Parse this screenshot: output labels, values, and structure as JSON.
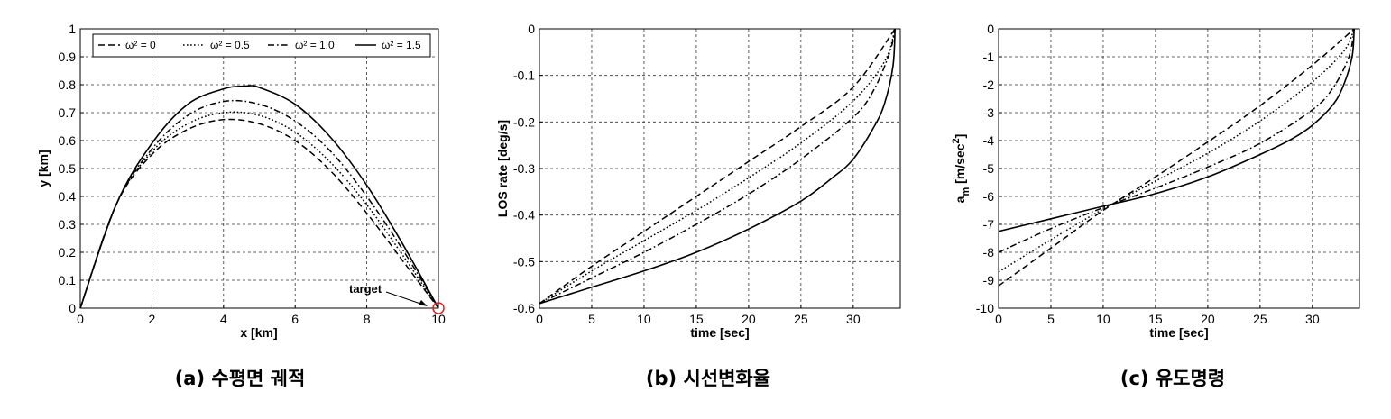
{
  "chart_data": [
    {
      "type": "line",
      "caption": "(a) 수평면 궤적",
      "xlabel": "x [km]",
      "ylabel": "y [km]",
      "xlim": [
        0,
        10
      ],
      "ylim": [
        0,
        1
      ],
      "xticks": [
        "0",
        "2",
        "4",
        "6",
        "8",
        "10"
      ],
      "yticks": [
        "0",
        "0.1",
        "0.2",
        "0.3",
        "0.4",
        "0.5",
        "0.6",
        "0.7",
        "0.8",
        "0.9",
        "1"
      ],
      "grid": true,
      "legend_position": "top",
      "annotation": "target",
      "target_point": [
        10,
        0
      ],
      "target_color": "#e02020",
      "series": [
        {
          "name": "ω² = 0",
          "style": "dashed",
          "x": [
            0,
            1,
            2,
            3,
            4,
            5,
            6,
            7,
            8,
            9,
            10
          ],
          "y": [
            0,
            0.37,
            0.55,
            0.64,
            0.675,
            0.66,
            0.6,
            0.49,
            0.34,
            0.17,
            0
          ]
        },
        {
          "name": "ω² = 0.5",
          "style": "dotted",
          "x": [
            0,
            1,
            2,
            3,
            4,
            5,
            6,
            7,
            8,
            9,
            10
          ],
          "y": [
            0,
            0.37,
            0.56,
            0.66,
            0.7,
            0.69,
            0.63,
            0.52,
            0.37,
            0.19,
            0
          ]
        },
        {
          "name": "ω² = 1.0",
          "style": "dashdot",
          "x": [
            0,
            1,
            2,
            3,
            4,
            5,
            6,
            7,
            8,
            9,
            10
          ],
          "y": [
            0,
            0.37,
            0.57,
            0.69,
            0.74,
            0.73,
            0.67,
            0.56,
            0.4,
            0.21,
            0
          ]
        },
        {
          "name": "ω² = 1.5",
          "style": "solid",
          "x": [
            0,
            1,
            2,
            3,
            4,
            4.6,
            5,
            6,
            7,
            8,
            9,
            10
          ],
          "y": [
            0,
            0.37,
            0.59,
            0.73,
            0.785,
            0.795,
            0.79,
            0.73,
            0.61,
            0.44,
            0.23,
            0
          ]
        }
      ]
    },
    {
      "type": "line",
      "caption": "(b) 시선변화율",
      "xlabel": "time [sec]",
      "ylabel": "LOS rate [deg/s]",
      "xlim": [
        0,
        34.5
      ],
      "ylim": [
        -0.6,
        0
      ],
      "xticks": [
        "0",
        "5",
        "10",
        "15",
        "20",
        "25",
        "30"
      ],
      "yticks": [
        "-0.6",
        "-0.5",
        "-0.4",
        "-0.3",
        "-0.2",
        "-0.1",
        "0"
      ],
      "grid": true,
      "series": [
        {
          "style": "dashed",
          "x": [
            0,
            5,
            10,
            15,
            20,
            25,
            30,
            34
          ],
          "y": [
            -0.59,
            -0.51,
            -0.435,
            -0.36,
            -0.285,
            -0.21,
            -0.125,
            0
          ]
        },
        {
          "style": "dotted",
          "x": [
            0,
            5,
            10,
            15,
            20,
            25,
            30,
            33,
            34
          ],
          "y": [
            -0.59,
            -0.52,
            -0.455,
            -0.39,
            -0.32,
            -0.245,
            -0.155,
            -0.07,
            0
          ]
        },
        {
          "style": "dashdot",
          "x": [
            0,
            5,
            10,
            15,
            20,
            25,
            30,
            32,
            33.5,
            34
          ],
          "y": [
            -0.59,
            -0.535,
            -0.48,
            -0.42,
            -0.355,
            -0.28,
            -0.19,
            -0.13,
            -0.05,
            0
          ]
        },
        {
          "style": "solid",
          "x": [
            0,
            5,
            10,
            15,
            20,
            25,
            28,
            30,
            32,
            33,
            33.8,
            34
          ],
          "y": [
            -0.59,
            -0.555,
            -0.52,
            -0.48,
            -0.43,
            -0.37,
            -0.32,
            -0.28,
            -0.21,
            -0.16,
            -0.08,
            0
          ]
        }
      ]
    },
    {
      "type": "line",
      "caption": "(c) 유도명령",
      "xlabel": "time [sec]",
      "ylabel": "a_m [m/sec²]",
      "ylabel_main": "a",
      "ylabel_sub": "m",
      "ylabel_rest": " [m/sec",
      "ylabel_sup": "2",
      "ylabel_end": "]",
      "xlim": [
        0,
        34.5
      ],
      "ylim": [
        -10,
        0
      ],
      "xticks": [
        "0",
        "5",
        "10",
        "15",
        "20",
        "25",
        "30"
      ],
      "yticks": [
        "-10",
        "-9",
        "-8",
        "-7",
        "-6",
        "-5",
        "-4",
        "-3",
        "-2",
        "-1",
        "0"
      ],
      "grid": true,
      "series": [
        {
          "style": "dashed",
          "x": [
            0,
            5,
            10,
            15,
            20,
            25,
            30,
            34
          ],
          "y": [
            -9.2,
            -7.85,
            -6.5,
            -5.3,
            -4.05,
            -2.75,
            -1.3,
            0
          ]
        },
        {
          "style": "dotted",
          "x": [
            0,
            5,
            10,
            15,
            20,
            25,
            30,
            33,
            34
          ],
          "y": [
            -8.7,
            -7.55,
            -6.45,
            -5.45,
            -4.45,
            -3.3,
            -1.9,
            -0.8,
            0
          ]
        },
        {
          "style": "dashdot",
          "x": [
            0,
            5,
            10,
            15,
            20,
            25,
            30,
            32,
            33.5,
            34
          ],
          "y": [
            -8.0,
            -7.15,
            -6.4,
            -5.7,
            -4.95,
            -4.1,
            -2.9,
            -2.1,
            -1.0,
            0
          ]
        },
        {
          "style": "solid",
          "x": [
            0,
            5,
            10,
            15,
            20,
            25,
            28,
            30,
            32,
            33,
            33.8,
            34
          ],
          "y": [
            -7.25,
            -6.8,
            -6.35,
            -5.9,
            -5.3,
            -4.5,
            -3.95,
            -3.45,
            -2.7,
            -2.0,
            -1.0,
            0
          ]
        }
      ]
    }
  ]
}
